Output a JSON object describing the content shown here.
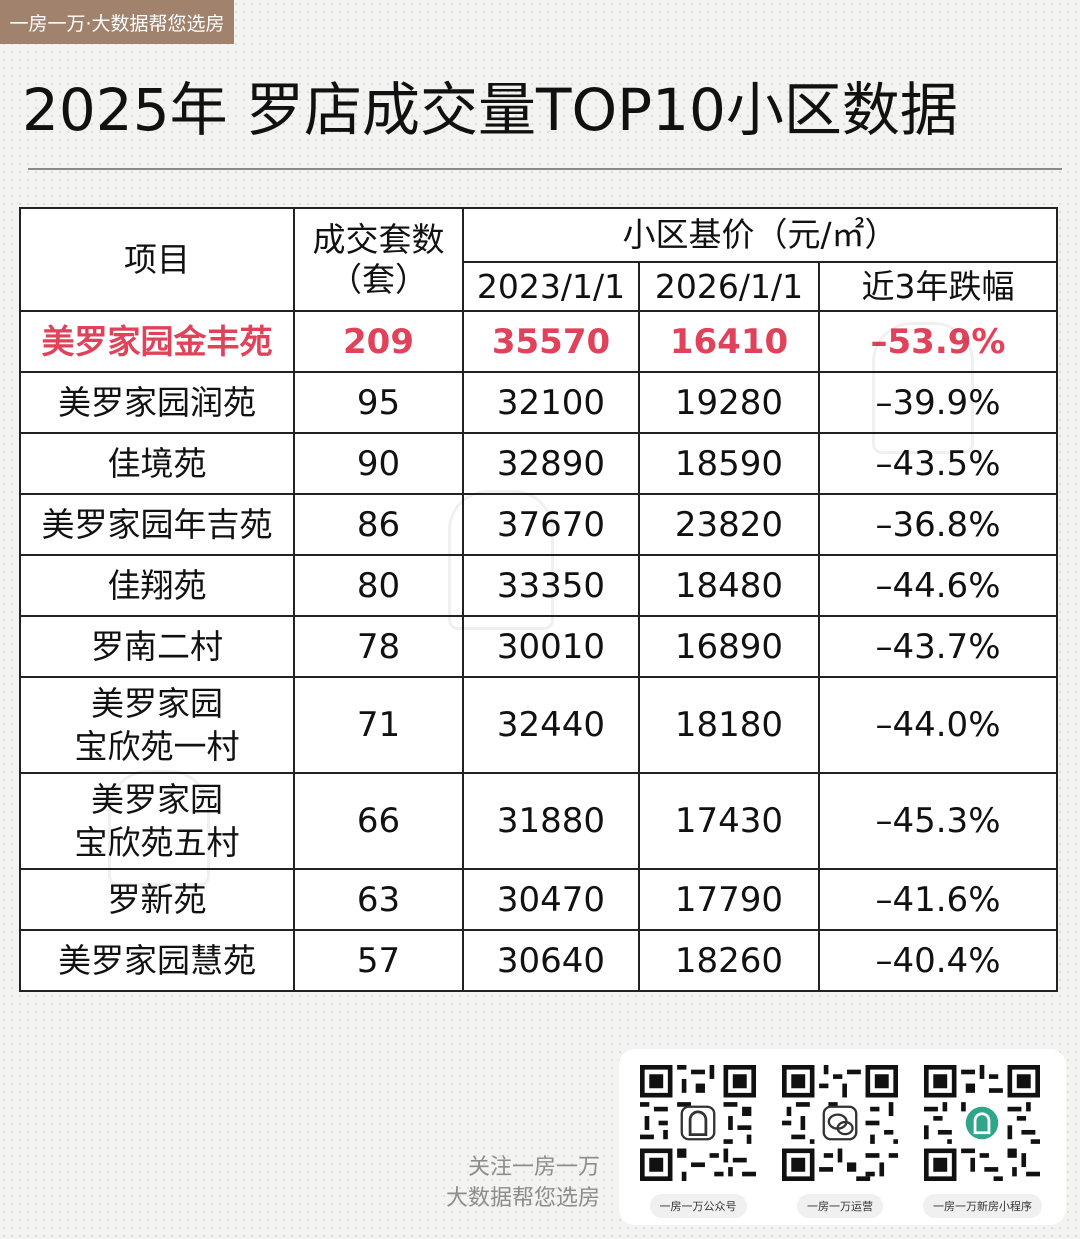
{
  "brand_tag": "一房一万·大数据帮您选房",
  "title": "2025年 罗店成交量TOP10小区数据",
  "table": {
    "headers": {
      "project": "项目",
      "deals": "成交套数",
      "deals_unit": "（套）",
      "base_price": "小区基价（元/㎡）",
      "date_2023": "2023/1/1",
      "date_2026": "2026/1/1",
      "change": "近3年跌幅"
    },
    "rows": [
      {
        "name": "美罗家园金丰苑",
        "deals": "209",
        "p2023": "35570",
        "p2026": "16410",
        "change": "–53.9%"
      },
      {
        "name": "美罗家园润苑",
        "deals": "95",
        "p2023": "32100",
        "p2026": "19280",
        "change": "–39.9%"
      },
      {
        "name": "佳境苑",
        "deals": "90",
        "p2023": "32890",
        "p2026": "18590",
        "change": "–43.5%"
      },
      {
        "name": "美罗家园年吉苑",
        "deals": "86",
        "p2023": "37670",
        "p2026": "23820",
        "change": "–36.8%"
      },
      {
        "name": "佳翔苑",
        "deals": "80",
        "p2023": "33350",
        "p2026": "18480",
        "change": "–44.6%"
      },
      {
        "name": "罗南二村",
        "deals": "78",
        "p2023": "30010",
        "p2026": "16890",
        "change": "–43.7%"
      },
      {
        "name_line1": "美罗家园",
        "name_line2": "宝欣苑一村",
        "deals": "71",
        "p2023": "32440",
        "p2026": "18180",
        "change": "–44.0%"
      },
      {
        "name_line1": "美罗家园",
        "name_line2": "宝欣苑五村",
        "deals": "66",
        "p2023": "31880",
        "p2026": "17430",
        "change": "–45.3%"
      },
      {
        "name": "罗新苑",
        "deals": "63",
        "p2023": "30470",
        "p2026": "17790",
        "change": "–41.6%"
      },
      {
        "name": "美罗家园慧苑",
        "deals": "57",
        "p2023": "30640",
        "p2026": "18260",
        "change": "–40.4%"
      }
    ]
  },
  "footer": {
    "slogan_line1": "关注一房一万",
    "slogan_line2": "大数据帮您选房",
    "qr_codes": [
      {
        "label": "一房一万公众号",
        "icon": "house-logo-icon"
      },
      {
        "label": "一房一万运营",
        "icon": "wechat-icon"
      },
      {
        "label": "一房一万新房小程序",
        "icon": "mini-program-icon"
      }
    ]
  },
  "colors": {
    "highlight": "#e0425a",
    "brand": "#a0826d",
    "mini_program": "#2fa58a"
  }
}
